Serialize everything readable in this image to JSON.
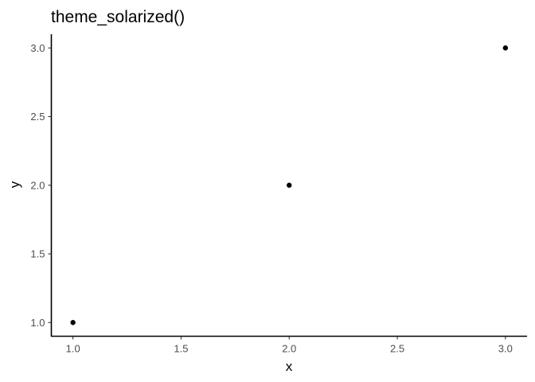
{
  "chart_data": {
    "type": "scatter",
    "title": "theme_solarized()",
    "xlabel": "x",
    "ylabel": "y",
    "x": [
      1.0,
      2.0,
      3.0
    ],
    "y": [
      1.0,
      2.0,
      3.0
    ],
    "xlim": [
      0.9,
      3.1
    ],
    "ylim": [
      0.9,
      3.1
    ],
    "xticks": [
      "1.0",
      "1.5",
      "2.0",
      "2.5",
      "3.0"
    ],
    "yticks": [
      "1.0",
      "1.5",
      "2.0",
      "2.5",
      "3.0"
    ],
    "grid": false,
    "point_color": "#000000"
  }
}
